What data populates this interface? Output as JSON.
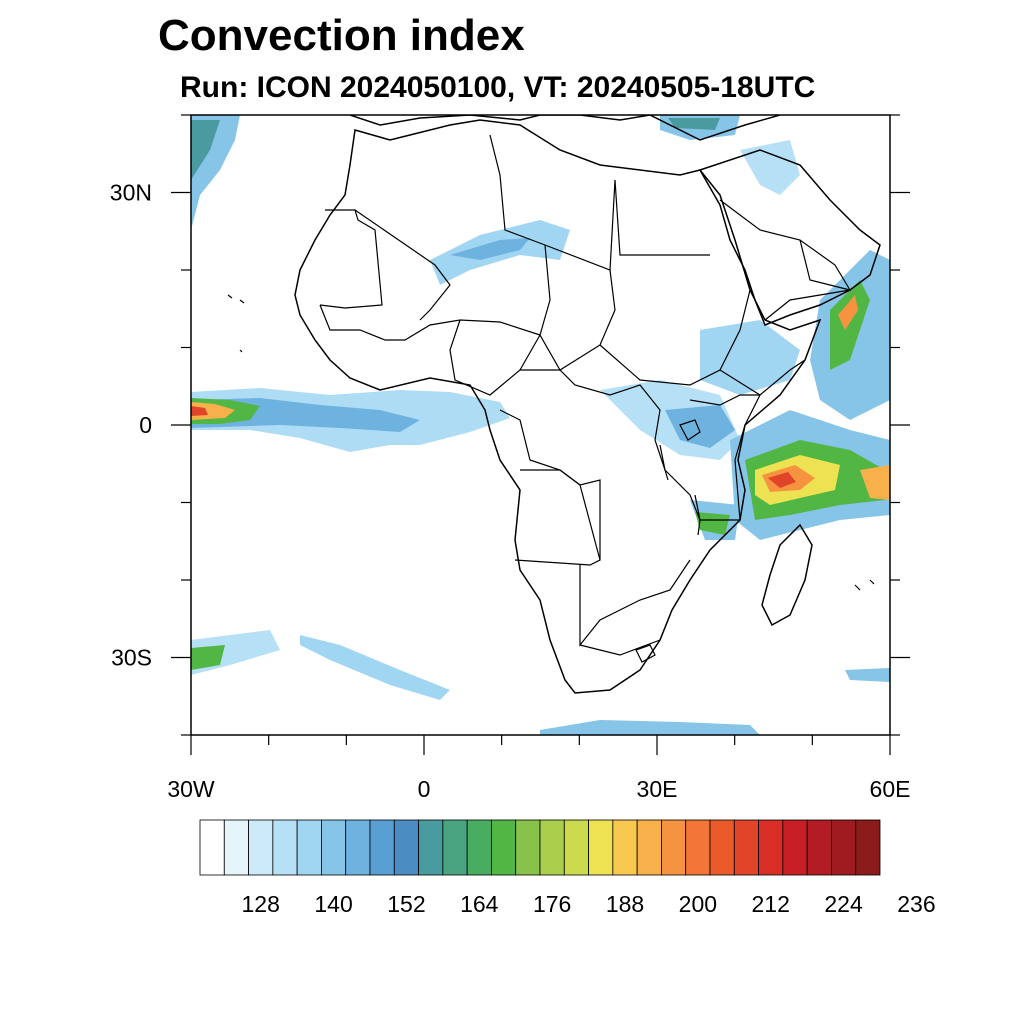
{
  "title": "Convection index",
  "subtitle": "Run: ICON 2024050100,  VT: 20240505-18UTC",
  "axes": {
    "lon_labels": [
      "30W",
      "0",
      "30E",
      "60E"
    ],
    "lat_labels": [
      "30N",
      "0",
      "30S"
    ],
    "lon_range": [
      -30,
      60
    ],
    "lat_range": [
      -40,
      40
    ],
    "lon_label_values": [
      -30,
      0,
      30,
      60
    ],
    "lat_label_values": [
      30,
      0,
      -30
    ],
    "lon_minor_step": 10,
    "lat_minor_step": 10
  },
  "colorbar": {
    "labels": [
      "128",
      "140",
      "152",
      "164",
      "176",
      "188",
      "200",
      "212",
      "224",
      "236"
    ],
    "colors": [
      "#ffffff",
      "#e6f4fc",
      "#cdeaf8",
      "#b6e0f5",
      "#a0d6f2",
      "#86c4e8",
      "#6eb2df",
      "#5a9fd3",
      "#4b8cc2",
      "#4a9ba0",
      "#48a57f",
      "#48ad60",
      "#52b645",
      "#88c24b",
      "#aacf4c",
      "#ccda4e",
      "#ede352",
      "#f8c94e",
      "#f7b04a",
      "#f69340",
      "#f27635",
      "#ea5a2b",
      "#e14428",
      "#d82e27",
      "#c81f26",
      "#b31c24",
      "#9f1b20",
      "#8b1a1a"
    ]
  }
}
